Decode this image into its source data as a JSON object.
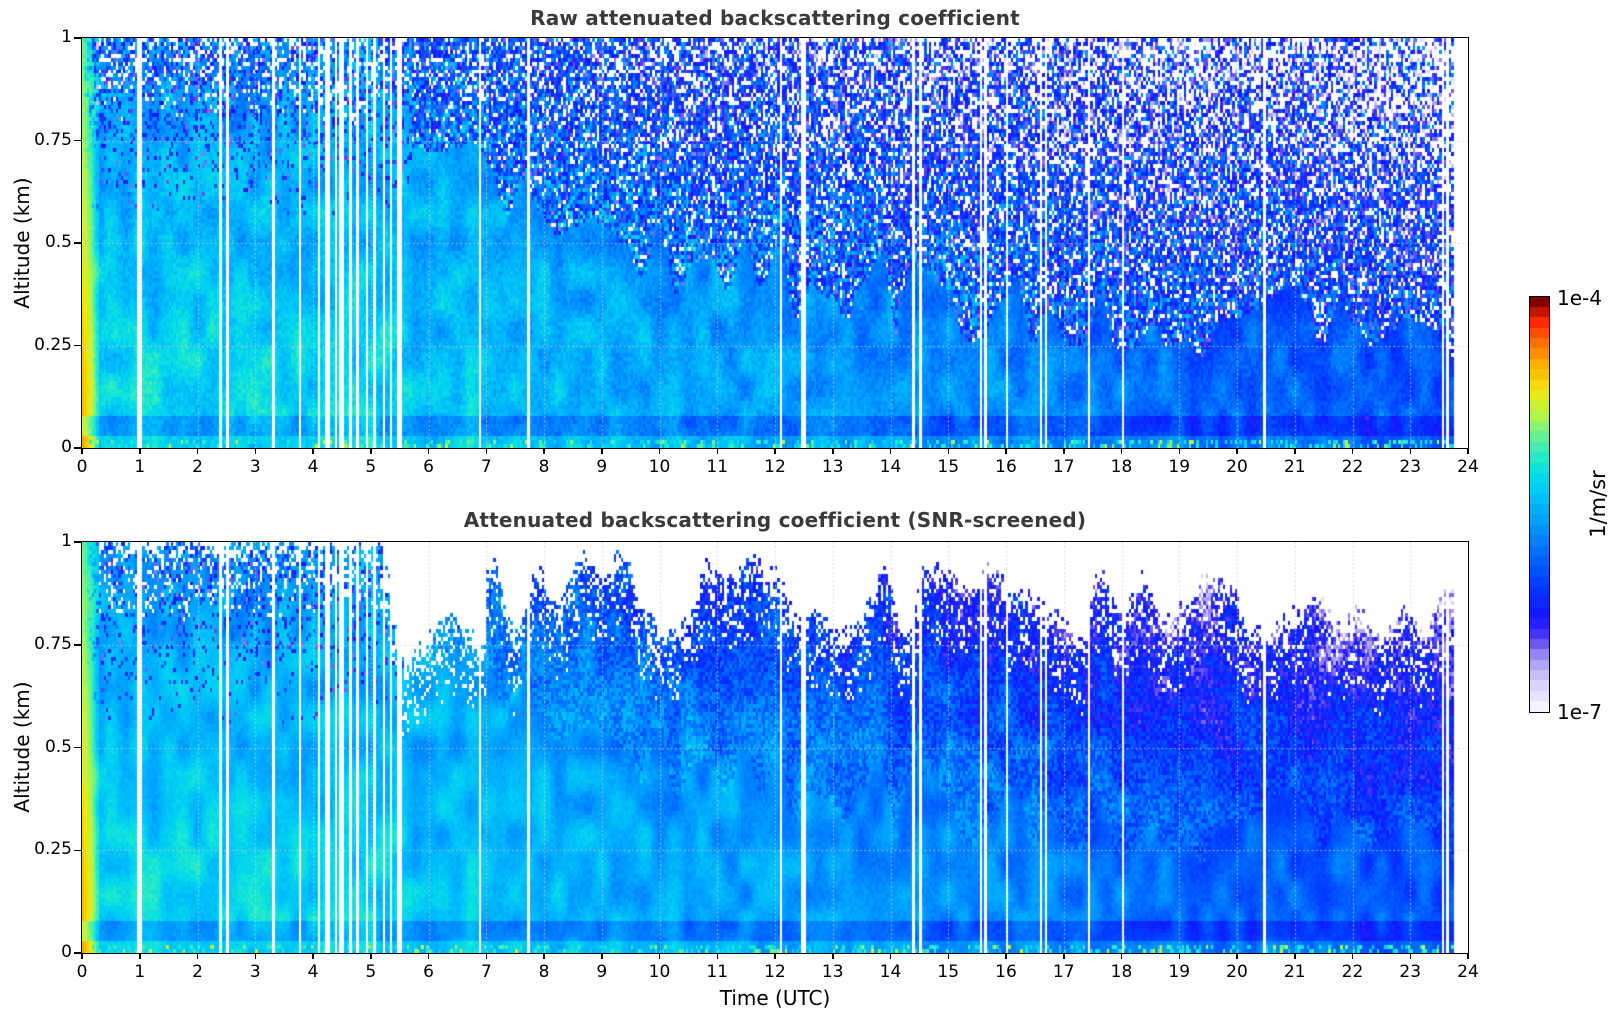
{
  "page": {
    "background": "#ffffff"
  },
  "chart_data": [
    {
      "type": "heatmap",
      "title": "Raw attenuated backscattering coefficient",
      "x": {
        "label": "Time (UTC)",
        "min": 0,
        "max": 24,
        "tick_labels": [
          "0",
          "1",
          "2",
          "3",
          "4",
          "5",
          "6",
          "7",
          "8",
          "9",
          "10",
          "11",
          "12",
          "13",
          "14",
          "15",
          "16",
          "17",
          "18",
          "19",
          "20",
          "21",
          "22",
          "23",
          "24"
        ]
      },
      "y": {
        "label": "Altitude (km)",
        "min": 0,
        "max": 1,
        "tick_values": [
          0,
          0.25,
          0.5,
          0.75,
          1
        ],
        "tick_labels": [
          "0",
          "0.25",
          "0.5",
          "0.75",
          "1"
        ]
      },
      "value": {
        "label": "1/m/sr",
        "scale": "log10",
        "min": 1e-07,
        "max": 0.0001
      },
      "screened": false,
      "grid": {
        "shown": true,
        "style": "dotted",
        "x_every_hours": 1,
        "y_at": [
          0.25,
          0.5,
          0.75
        ]
      },
      "features": [
        "bright red-orange-yellow near-field return column at 0-0.3 UTC over all altitudes",
        "cyan high-backscatter boundary layer filling 0-1 km from 0.3 to ~5.7 UTC with dark-blue and white noise speckle near the top",
        "after ~5.7 UTC the mixed layer top descends from ~0.7 km to ~0.3 km; cyan plumes below, progressively darker blue toward 24 UTC",
        "above the mixed layer: noisy dark-blue field with white (below-range) speckle density increasing with altitude and time",
        "thin darker horizontal band near 0.03-0.07 km and green-cyan speckle at the lowest range gate",
        "numerous narrow white vertical data-gap stripes, densest between 4 and 5.5 UTC; data end gap after ~23.75 UTC"
      ]
    },
    {
      "type": "heatmap",
      "title": "Attenuated backscattering coefficient (SNR-screened)",
      "x": {
        "label": "Time (UTC)",
        "min": 0,
        "max": 24,
        "tick_labels": [
          "0",
          "1",
          "2",
          "3",
          "4",
          "5",
          "6",
          "7",
          "8",
          "9",
          "10",
          "11",
          "12",
          "13",
          "14",
          "15",
          "16",
          "17",
          "18",
          "19",
          "20",
          "21",
          "22",
          "23",
          "24"
        ]
      },
      "y": {
        "label": "Altitude (km)",
        "min": 0,
        "max": 1,
        "tick_values": [
          0,
          0.25,
          0.5,
          0.75,
          1
        ],
        "tick_labels": [
          "0",
          "0.25",
          "0.5",
          "0.75",
          "1"
        ]
      },
      "value": {
        "label": "1/m/sr",
        "scale": "log10",
        "min": 1e-07,
        "max": 0.0001
      },
      "screened": true,
      "grid": {
        "shown": true,
        "style": "dotted",
        "x_every_hours": 1,
        "y_at": [
          0.25,
          0.5,
          0.75
        ]
      },
      "features": [
        "same field as raw panel but low-SNR bins removed (rendered white)",
        "before ~7 UTC almost full column retained with small white bites at the top",
        "after ~7.5 UTC a ragged white screened region above ~0.75-0.95 km with island-like bites",
        "smooth blue field below the screening boundary with pale lavender low-value patches near the boundary after ~20 UTC"
      ]
    }
  ],
  "colorbar": {
    "top_label": "1e-4",
    "bottom_label": "1e-7",
    "axis_label": "1/m/sr",
    "orientation": "vertical",
    "discrete_steps": 40,
    "stops": [
      {
        "u": 0.0,
        "rgb": [
          244,
          242,
          255
        ]
      },
      {
        "u": 0.06,
        "rgb": [
          214,
          206,
          250
        ]
      },
      {
        "u": 0.12,
        "rgb": [
          160,
          148,
          245
        ]
      },
      {
        "u": 0.17,
        "rgb": [
          80,
          60,
          245
        ]
      },
      {
        "u": 0.22,
        "rgb": [
          20,
          20,
          255
        ]
      },
      {
        "u": 0.3,
        "rgb": [
          0,
          60,
          255
        ]
      },
      {
        "u": 0.38,
        "rgb": [
          0,
          110,
          255
        ]
      },
      {
        "u": 0.46,
        "rgb": [
          0,
          160,
          255
        ]
      },
      {
        "u": 0.54,
        "rgb": [
          0,
          205,
          245
        ]
      },
      {
        "u": 0.6,
        "rgb": [
          20,
          230,
          215
        ]
      },
      {
        "u": 0.66,
        "rgb": [
          90,
          240,
          160
        ]
      },
      {
        "u": 0.72,
        "rgb": [
          180,
          245,
          70
        ]
      },
      {
        "u": 0.78,
        "rgb": [
          240,
          230,
          20
        ]
      },
      {
        "u": 0.84,
        "rgb": [
          255,
          180,
          0
        ]
      },
      {
        "u": 0.9,
        "rgb": [
          255,
          110,
          0
        ]
      },
      {
        "u": 0.95,
        "rgb": [
          255,
          40,
          0
        ]
      },
      {
        "u": 1.0,
        "rgb": [
          128,
          0,
          0
        ]
      }
    ]
  },
  "render_params": {
    "title_color": "#3a3a3a",
    "grid_color": "rgba(210,206,200,0.9)",
    "seed": 1337,
    "time_bins": 576,
    "alt_bins": 104,
    "transition_hour": 5.7,
    "near_field_end_hour": 0.3,
    "base_log_value_early": -5.28,
    "base_log_value_slope_per_hour": -0.033,
    "mixed_layer_decay_hours": 5.5,
    "mixed_layer_floor_km": 0.27,
    "mixed_layer_amp_km": 0.46,
    "dark_band_km": [
      0.028,
      0.075
    ],
    "data_gap_hours": [
      1.0,
      2.4,
      2.52,
      3.33,
      3.78,
      4.12,
      4.25,
      4.38,
      4.5,
      4.63,
      4.78,
      4.93,
      5.08,
      5.22,
      5.37,
      5.5,
      6.9,
      7.72,
      12.1,
      12.5,
      14.39,
      14.51,
      15.58,
      15.66,
      16.02,
      16.62,
      16.7,
      17.45,
      18.02,
      20.48,
      23.55,
      23.65
    ],
    "data_gap_halfwidth_hours": 0.024,
    "data_end_gap_start_hour": 23.74
  }
}
